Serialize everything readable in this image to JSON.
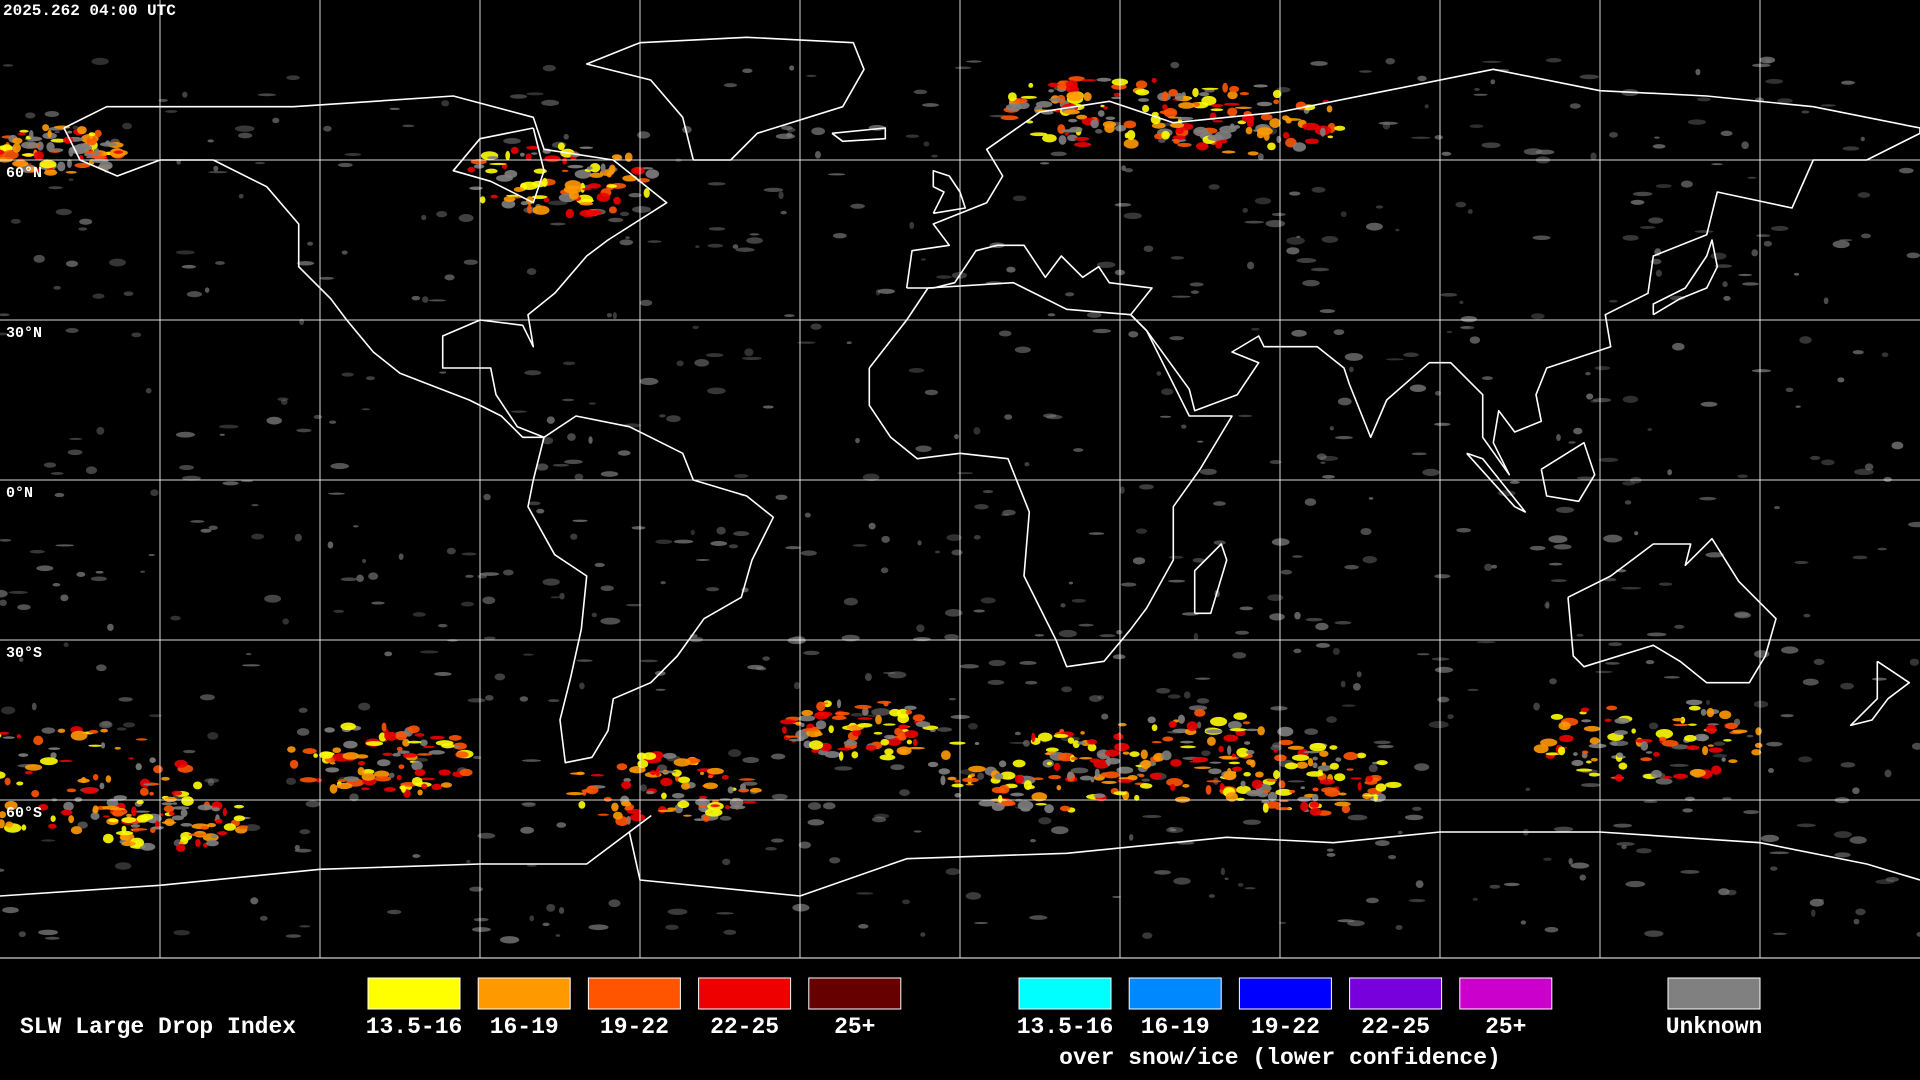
{
  "timestamp": "2025.262 04:00 UTC",
  "latitude_labels": [
    "60°N",
    "30°N",
    "0°N",
    "30°S",
    "60°S"
  ],
  "legend": {
    "title": "SLW Large Drop Index",
    "items": [
      {
        "label": "13.5-16",
        "color": "#ffff00"
      },
      {
        "label": "16-19",
        "color": "#ff9900"
      },
      {
        "label": "19-22",
        "color": "#ff5500"
      },
      {
        "label": "22-25",
        "color": "#ee0000"
      },
      {
        "label": "25+",
        "color": "#660000"
      }
    ],
    "snow_ice_items": [
      {
        "label": "13.5-16",
        "color": "#00ffff"
      },
      {
        "label": "16-19",
        "color": "#0088ff"
      },
      {
        "label": "19-22",
        "color": "#0000ff"
      },
      {
        "label": "22-25",
        "color": "#7700dd"
      },
      {
        "label": "25+",
        "color": "#cc00cc"
      }
    ],
    "snow_ice_caption": "over snow/ice (lower confidence)",
    "unknown": {
      "label": "Unknown",
      "color": "#808080"
    }
  }
}
